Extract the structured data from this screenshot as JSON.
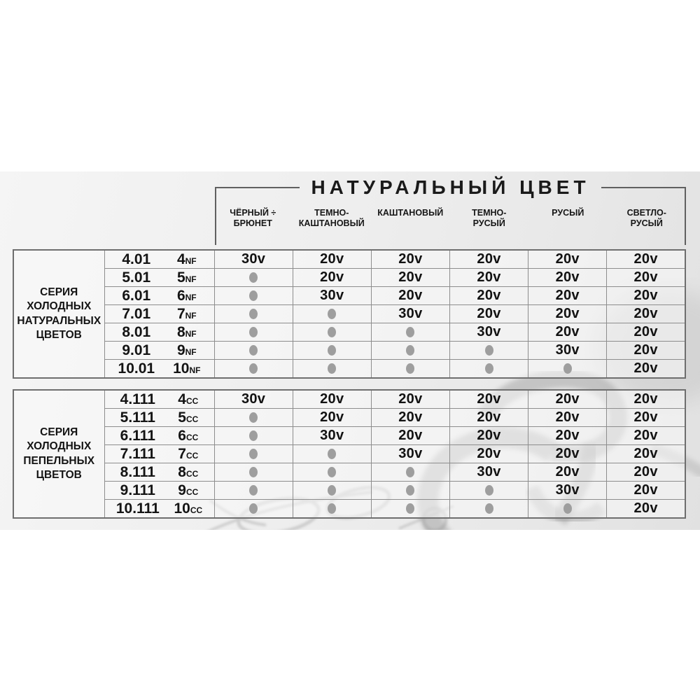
{
  "title": "НАТУРАЛЬНЫЙ ЦВЕТ",
  "column_headers": [
    {
      "lines": [
        "ЧЁРНЫЙ ÷",
        "БРЮНЕТ"
      ]
    },
    {
      "lines": [
        "ТЕМНО-",
        "КАШТАНОВЫЙ"
      ]
    },
    {
      "lines": [
        "КАШТАНОВЫЙ"
      ]
    },
    {
      "lines": [
        "ТЕМНО-",
        "РУСЫЙ"
      ]
    },
    {
      "lines": [
        "РУСЫЙ"
      ]
    },
    {
      "lines": [
        "СВЕТЛО-",
        "РУСЫЙ"
      ]
    }
  ],
  "dot_meaning_symbol": "●",
  "colors": {
    "dot_marker": "#9e9e9e",
    "grid_line": "#8d8d8d",
    "watermark": "#9a9a9a"
  },
  "icons": {
    "watermark": "watermark-script-logo"
  },
  "tables": [
    {
      "series_label_lines": [
        "СЕРИЯ",
        "ХОЛОДНЫХ",
        "НАТУРАЛЬНЫХ",
        "ЦВЕТОВ"
      ],
      "rows": [
        {
          "code": "4.01",
          "short": "4",
          "suffix": "NF",
          "values": [
            "30v",
            "20v",
            "20v",
            "20v",
            "20v",
            "20v"
          ]
        },
        {
          "code": "5.01",
          "short": "5",
          "suffix": "NF",
          "values": [
            "dot",
            "20v",
            "20v",
            "20v",
            "20v",
            "20v"
          ]
        },
        {
          "code": "6.01",
          "short": "6",
          "suffix": "NF",
          "values": [
            "dot",
            "30v",
            "20v",
            "20v",
            "20v",
            "20v"
          ]
        },
        {
          "code": "7.01",
          "short": "7",
          "suffix": "NF",
          "values": [
            "dot",
            "dot",
            "30v",
            "20v",
            "20v",
            "20v"
          ]
        },
        {
          "code": "8.01",
          "short": "8",
          "suffix": "NF",
          "values": [
            "dot",
            "dot",
            "dot",
            "30v",
            "20v",
            "20v"
          ]
        },
        {
          "code": "9.01",
          "short": "9",
          "suffix": "NF",
          "values": [
            "dot",
            "dot",
            "dot",
            "dot",
            "30v",
            "20v"
          ]
        },
        {
          "code": "10.01",
          "short": "10",
          "suffix": "NF",
          "values": [
            "dot",
            "dot",
            "dot",
            "dot",
            "dot",
            "20v"
          ]
        }
      ]
    },
    {
      "series_label_lines": [
        "СЕРИЯ",
        "ХОЛОДНЫХ",
        "ПЕПЕЛЬНЫХ",
        "ЦВЕТОВ"
      ],
      "rows": [
        {
          "code": "4.111",
          "short": "4",
          "suffix": "CC",
          "values": [
            "30v",
            "20v",
            "20v",
            "20v",
            "20v",
            "20v"
          ]
        },
        {
          "code": "5.111",
          "short": "5",
          "suffix": "CC",
          "values": [
            "dot",
            "20v",
            "20v",
            "20v",
            "20v",
            "20v"
          ]
        },
        {
          "code": "6.111",
          "short": "6",
          "suffix": "CC",
          "values": [
            "dot",
            "30v",
            "20v",
            "20v",
            "20v",
            "20v"
          ]
        },
        {
          "code": "7.111",
          "short": "7",
          "suffix": "CC",
          "values": [
            "dot",
            "dot",
            "30v",
            "20v",
            "20v",
            "20v"
          ]
        },
        {
          "code": "8.111",
          "short": "8",
          "suffix": "CC",
          "values": [
            "dot",
            "dot",
            "dot",
            "30v",
            "20v",
            "20v"
          ]
        },
        {
          "code": "9.111",
          "short": "9",
          "suffix": "CC",
          "values": [
            "dot",
            "dot",
            "dot",
            "dot",
            "30v",
            "20v"
          ]
        },
        {
          "code": "10.111",
          "short": "10",
          "suffix": "CC",
          "values": [
            "dot",
            "dot",
            "dot",
            "dot",
            "dot",
            "20v"
          ]
        }
      ]
    }
  ]
}
